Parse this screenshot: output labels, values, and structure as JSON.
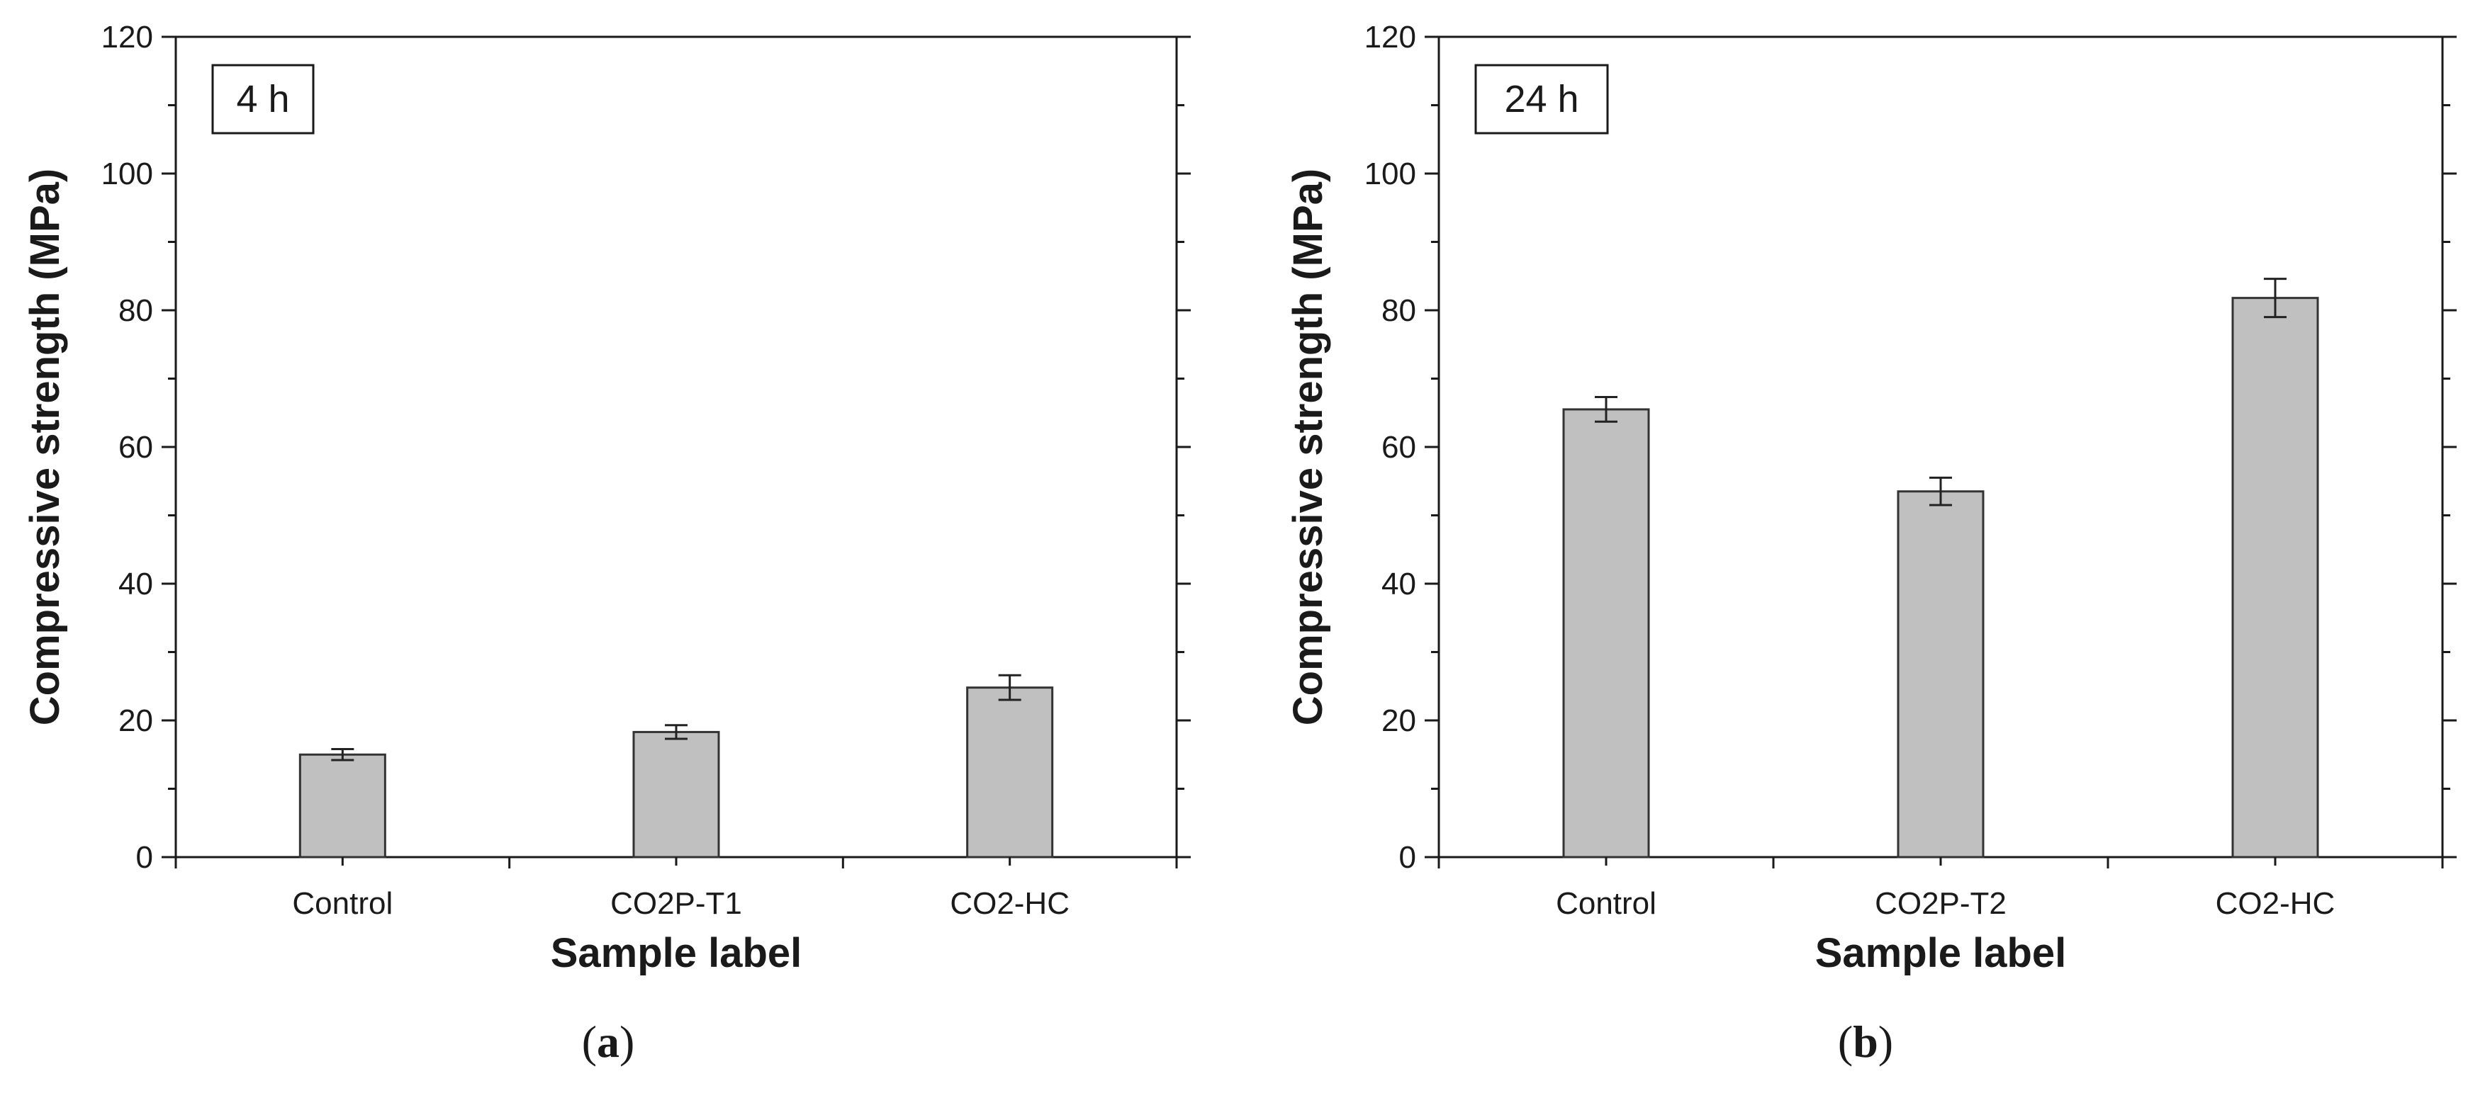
{
  "chart_data": [
    {
      "type": "bar",
      "panel_tag": "4 h",
      "caption": {
        "open": "(",
        "letter": "a",
        "close": ")"
      },
      "xlabel": "Sample label",
      "ylabel": "Compressive strength (MPa)",
      "ylim": [
        0,
        120
      ],
      "yticks": [
        "0",
        "20",
        "40",
        "60",
        "80",
        "100",
        "120"
      ],
      "categories": [
        "Control",
        "CO2P-T1",
        "CO2-HC"
      ],
      "values": [
        15,
        18.3,
        24.8
      ],
      "errors": [
        0.8,
        1.0,
        1.8
      ],
      "bar_color": "#c0c0c0",
      "grid": false
    },
    {
      "type": "bar",
      "panel_tag": "24 h",
      "caption": {
        "open": "(",
        "letter": "b",
        "close": ")"
      },
      "xlabel": "Sample label",
      "ylabel": "Compressive strength (MPa)",
      "ylim": [
        0,
        120
      ],
      "yticks": [
        "0",
        "20",
        "40",
        "60",
        "80",
        "100",
        "120"
      ],
      "categories": [
        "Control",
        "CO2P-T2",
        "CO2-HC"
      ],
      "values": [
        65.5,
        53.5,
        81.8
      ],
      "errors": [
        1.8,
        2.0,
        2.8
      ],
      "bar_color": "#c0c0c0",
      "grid": false
    }
  ]
}
